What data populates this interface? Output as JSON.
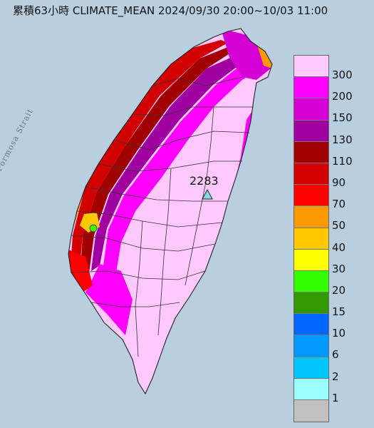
{
  "title": "累積63小時 CLIMATE_MEAN 2024/09/30 20:00~10/03 11:00",
  "map": {
    "sea_label": "Formosa Strait",
    "peak_value": "2283",
    "colors": {
      "sea": "#b9cfe0",
      "land_base": "#ffc8ff",
      "border": "#222222"
    }
  },
  "legend": {
    "items": [
      {
        "label": "300",
        "color": "#ffc8ff"
      },
      {
        "label": "200",
        "color": "#ff00ff"
      },
      {
        "label": "150",
        "color": "#d400d4"
      },
      {
        "label": "130",
        "color": "#a000a0"
      },
      {
        "label": "110",
        "color": "#a00000"
      },
      {
        "label": "90",
        "color": "#d20000"
      },
      {
        "label": "70",
        "color": "#ff0000"
      },
      {
        "label": "50",
        "color": "#ff9900"
      },
      {
        "label": "40",
        "color": "#ffc800"
      },
      {
        "label": "30",
        "color": "#ffff00"
      },
      {
        "label": "20",
        "color": "#33ff00"
      },
      {
        "label": "15",
        "color": "#339900"
      },
      {
        "label": "10",
        "color": "#0066ff"
      },
      {
        "label": "6",
        "color": "#0099ff"
      },
      {
        "label": "2",
        "color": "#00c8ff"
      },
      {
        "label": "1",
        "color": "#99ffff"
      },
      {
        "label": "",
        "color": "#c0c0c0"
      }
    ]
  }
}
